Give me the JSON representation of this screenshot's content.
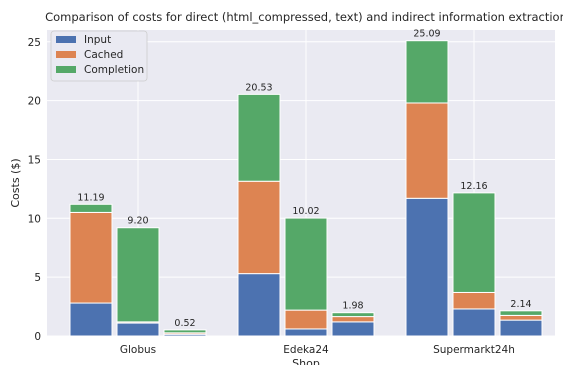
{
  "chart_data": {
    "type": "bar",
    "stacked": true,
    "title": "Comparison of costs for direct (html_compressed, text) and indirect information extraction",
    "xlabel": "Shop",
    "ylabel": "Costs ($)",
    "ylim": [
      0,
      26
    ],
    "yticks": [
      0,
      5,
      10,
      15,
      20,
      25
    ],
    "grid": true,
    "legend_position": "top-left",
    "categories": [
      "Globus",
      "Edeka24",
      "Supermarkt24h"
    ],
    "bars_per_category": 3,
    "series": [
      {
        "name": "Input",
        "color": "#4c72b0",
        "values": [
          [
            2.8,
            1.1,
            0.15
          ],
          [
            5.3,
            0.6,
            1.2
          ],
          [
            11.7,
            2.3,
            1.35
          ]
        ]
      },
      {
        "name": "Cached",
        "color": "#dd8452",
        "values": [
          [
            7.7,
            0.1,
            0.12
          ],
          [
            7.85,
            1.6,
            0.45
          ],
          [
            8.1,
            1.4,
            0.4
          ]
        ]
      },
      {
        "name": "Completion",
        "color": "#55a868",
        "values": [
          [
            0.69,
            8.0,
            0.25
          ],
          [
            7.38,
            7.82,
            0.33
          ],
          [
            5.29,
            8.46,
            0.39
          ]
        ]
      }
    ],
    "totals": [
      [
        "11.19",
        "9.20",
        "0.52"
      ],
      [
        "20.53",
        "10.02",
        "1.98"
      ],
      [
        "25.09",
        "12.16",
        "2.14"
      ]
    ]
  }
}
